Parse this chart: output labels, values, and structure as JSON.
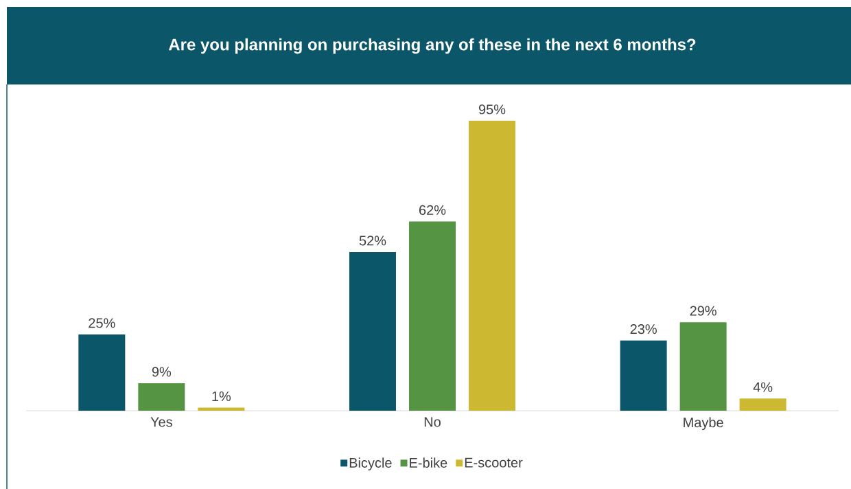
{
  "chart_data": {
    "type": "bar",
    "title": "Are you planning on purchasing any of these in the next 6 months?",
    "categories": [
      "Yes",
      "No",
      "Maybe"
    ],
    "series": [
      {
        "name": "Bicycle",
        "color": "#0b5669",
        "values": [
          25,
          52,
          23
        ],
        "value_labels": [
          "25%",
          "52%",
          "23%"
        ]
      },
      {
        "name": "E-bike",
        "color": "#549442",
        "values": [
          9,
          62,
          29
        ],
        "value_labels": [
          "9%",
          "62%",
          "29%"
        ]
      },
      {
        "name": "E-scooter",
        "color": "#cdb931",
        "values": [
          1,
          95,
          4
        ],
        "value_labels": [
          "1%",
          "95%",
          "4%"
        ]
      }
    ],
    "legend": "bottom"
  }
}
